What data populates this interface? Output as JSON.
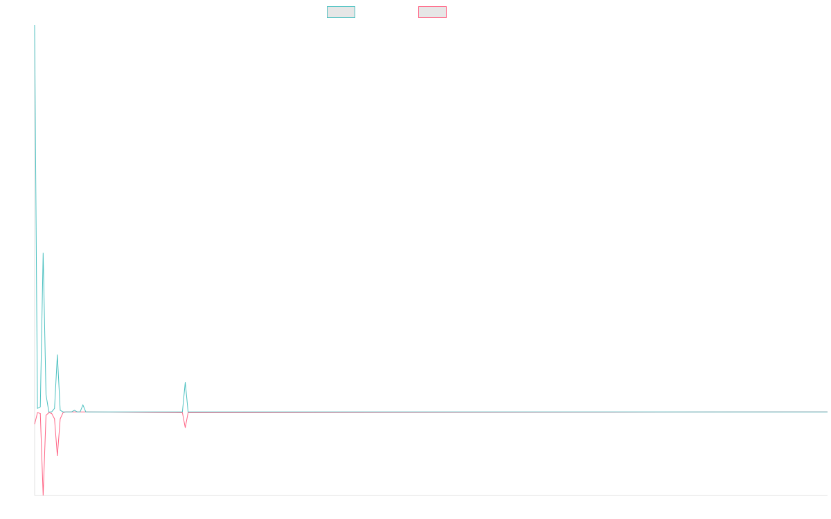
{
  "chart_data": {
    "type": "line",
    "x": [
      0,
      1,
      2,
      3,
      4,
      5,
      6,
      7,
      8,
      9,
      10,
      11,
      13,
      14,
      15,
      16,
      17,
      18,
      52,
      53,
      54,
      279
    ],
    "xlim": [
      0,
      279
    ],
    "ylim": [
      -21.6,
      100
    ],
    "series": [
      {
        "color": "#ff6384",
        "values": [
          -3.2,
          -0.2,
          -0.4,
          -21.6,
          -0.9,
          -0.2,
          -0.4,
          -1.8,
          -11.4,
          -1.8,
          -0.2,
          0,
          0,
          0,
          0,
          0,
          0,
          0,
          -0.2,
          -4.1,
          -0.2,
          0
        ]
      },
      {
        "color": "#4bc0c0",
        "values": [
          100,
          0.9,
          1.3,
          41.1,
          4.5,
          0,
          0,
          0.9,
          14.8,
          0.4,
          0,
          0,
          0,
          0.4,
          0,
          0,
          1.8,
          0,
          0,
          7.7,
          0,
          0
        ]
      }
    ],
    "legend_order": [
      1,
      0
    ]
  }
}
